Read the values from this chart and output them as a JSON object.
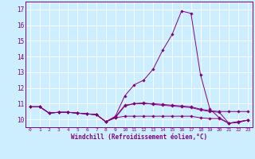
{
  "xlabel": "Windchill (Refroidissement éolien,°C)",
  "background_color": "#cceeff",
  "line_color": "#800080",
  "grid_color": "#ffffff",
  "xlim": [
    -0.5,
    23.5
  ],
  "ylim": [
    9.5,
    17.5
  ],
  "yticks": [
    10,
    11,
    12,
    13,
    14,
    15,
    16,
    17
  ],
  "xticks": [
    0,
    1,
    2,
    3,
    4,
    5,
    6,
    7,
    8,
    9,
    10,
    11,
    12,
    13,
    14,
    15,
    16,
    17,
    18,
    19,
    20,
    21,
    22,
    23
  ],
  "series": [
    [
      10.8,
      10.8,
      10.4,
      10.45,
      10.45,
      10.4,
      10.35,
      10.3,
      9.85,
      10.1,
      10.85,
      11.0,
      11.0,
      11.0,
      10.95,
      10.9,
      10.85,
      10.8,
      10.65,
      10.55,
      10.5,
      10.5,
      10.5,
      10.5
    ],
    [
      10.8,
      10.8,
      10.4,
      10.45,
      10.45,
      10.4,
      10.35,
      10.3,
      9.85,
      10.2,
      11.5,
      12.2,
      12.5,
      13.2,
      14.4,
      15.4,
      16.9,
      16.75,
      12.85,
      10.65,
      10.1,
      9.75,
      9.8,
      9.95
    ],
    [
      10.8,
      10.8,
      10.4,
      10.45,
      10.45,
      10.4,
      10.35,
      10.3,
      9.85,
      10.15,
      10.9,
      11.0,
      11.05,
      10.95,
      10.9,
      10.85,
      10.8,
      10.75,
      10.6,
      10.5,
      10.45,
      9.75,
      9.85,
      9.95
    ],
    [
      10.8,
      10.8,
      10.4,
      10.45,
      10.45,
      10.4,
      10.35,
      10.3,
      9.85,
      10.1,
      10.2,
      10.2,
      10.2,
      10.2,
      10.2,
      10.2,
      10.2,
      10.2,
      10.1,
      10.05,
      10.05,
      9.75,
      9.85,
      9.95
    ]
  ]
}
